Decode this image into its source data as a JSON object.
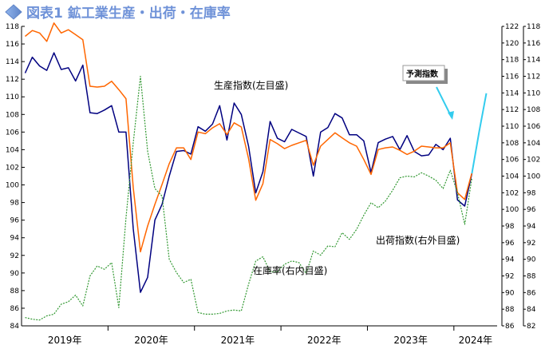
{
  "chart_data": {
    "type": "line",
    "title": "図表1 鉱工業生産・出荷・在庫率",
    "title_color": "#7f9fd8",
    "x_tick_labels": [
      "2019年",
      "2020年",
      "2021年",
      "2022年",
      "2023年",
      "2024年"
    ],
    "x_tick_years": [
      2019,
      2020,
      2021,
      2022,
      2023,
      2024
    ],
    "x_start": "2019-01",
    "x_end": "2024-06",
    "left_axis": {
      "min": 84,
      "max": 118,
      "step": 2
    },
    "right_axis_inventory": {
      "min": 86,
      "max": 122,
      "step": 2
    },
    "right_axis_shipment": {
      "min": 82,
      "max": 118,
      "step": 2
    },
    "grid": false,
    "series": [
      {
        "name": "生産指数(左目盛)",
        "axis": "left",
        "color": "#000080",
        "dashed": false,
        "x": [
          "2019-01",
          "2019-02",
          "2019-03",
          "2019-04",
          "2019-05",
          "2019-06",
          "2019-07",
          "2019-08",
          "2019-09",
          "2019-10",
          "2019-11",
          "2019-12",
          "2020-01",
          "2020-02",
          "2020-03",
          "2020-04",
          "2020-05",
          "2020-06",
          "2020-07",
          "2020-08",
          "2020-09",
          "2020-10",
          "2020-11",
          "2020-12",
          "2021-01",
          "2021-02",
          "2021-03",
          "2021-04",
          "2021-05",
          "2021-06",
          "2021-07",
          "2021-08",
          "2021-09",
          "2021-10",
          "2021-11",
          "2021-12",
          "2022-01",
          "2022-02",
          "2022-03",
          "2022-04",
          "2022-05",
          "2022-06",
          "2022-07",
          "2022-08",
          "2022-09",
          "2022-10",
          "2022-11",
          "2022-12",
          "2023-01",
          "2023-02",
          "2023-03",
          "2023-04",
          "2023-05",
          "2023-06",
          "2023-07",
          "2023-08",
          "2023-09",
          "2023-10",
          "2023-11",
          "2023-12",
          "2024-01",
          "2024-02",
          "2024-03"
        ],
        "values": [
          112.7,
          114.5,
          113.5,
          113.0,
          115.0,
          113.1,
          113.3,
          111.8,
          113.6,
          108.2,
          108.1,
          108.5,
          109.0,
          106.0,
          106.0,
          95.0,
          87.8,
          89.5,
          96.0,
          97.8,
          101.0,
          103.8,
          103.9,
          103.5,
          106.6,
          106.1,
          106.9,
          109.0,
          105.1,
          109.3,
          108.0,
          104.4,
          99.1,
          101.5,
          107.2,
          105.3,
          104.9,
          106.3,
          105.9,
          105.5,
          101.0,
          106.0,
          106.5,
          108.1,
          107.6,
          105.7,
          105.7,
          105.0,
          101.4,
          104.8,
          105.2,
          105.5,
          104.0,
          105.6,
          103.8,
          103.3,
          103.4,
          104.6,
          104.0,
          105.3,
          98.3,
          97.6,
          101.3
        ]
      },
      {
        "name": "出荷指数(右外目盛)",
        "axis": "right_shipment",
        "color": "#ff6600",
        "dashed": false,
        "x": [
          "2019-01",
          "2019-02",
          "2019-03",
          "2019-04",
          "2019-05",
          "2019-06",
          "2019-07",
          "2019-08",
          "2019-09",
          "2019-10",
          "2019-11",
          "2019-12",
          "2020-01",
          "2020-02",
          "2020-03",
          "2020-04",
          "2020-05",
          "2020-06",
          "2020-07",
          "2020-08",
          "2020-09",
          "2020-10",
          "2020-11",
          "2020-12",
          "2021-01",
          "2021-02",
          "2021-03",
          "2021-04",
          "2021-05",
          "2021-06",
          "2021-07",
          "2021-08",
          "2021-09",
          "2021-10",
          "2021-11",
          "2021-12",
          "2022-01",
          "2022-02",
          "2022-03",
          "2022-04",
          "2022-05",
          "2022-06",
          "2022-07",
          "2022-08",
          "2022-09",
          "2022-10",
          "2022-11",
          "2022-12",
          "2023-01",
          "2023-02",
          "2023-03",
          "2023-04",
          "2023-05",
          "2023-06",
          "2023-07",
          "2023-08",
          "2023-09",
          "2023-10",
          "2023-11",
          "2023-12",
          "2024-01",
          "2024-02",
          "2024-03"
        ],
        "values": [
          116.8,
          117.5,
          117.2,
          116.2,
          118.4,
          117.2,
          117.6,
          117.0,
          116.4,
          110.8,
          110.7,
          110.8,
          111.4,
          110.4,
          109.3,
          98.6,
          90.9,
          94.0,
          96.6,
          99.0,
          101.5,
          103.4,
          103.4,
          102.0,
          105.3,
          105.1,
          105.8,
          106.3,
          105.0,
          106.4,
          105.9,
          102.1,
          97.1,
          99.1,
          104.4,
          103.9,
          103.3,
          103.7,
          104.0,
          104.3,
          101.3,
          103.6,
          104.4,
          105.2,
          104.6,
          104.0,
          103.6,
          102.0,
          100.2,
          103.2,
          103.4,
          103.5,
          103.1,
          102.6,
          103.0,
          103.6,
          103.5,
          103.4,
          103.4,
          104.0,
          98.0,
          97.2,
          100.4
        ]
      },
      {
        "name": "在庫率(右内目盛)",
        "axis": "right_inventory",
        "color": "#339933",
        "dashed": true,
        "x": [
          "2019-01",
          "2019-02",
          "2019-03",
          "2019-04",
          "2019-05",
          "2019-06",
          "2019-07",
          "2019-08",
          "2019-09",
          "2019-10",
          "2019-11",
          "2019-12",
          "2020-01",
          "2020-02",
          "2020-03",
          "2020-04",
          "2020-05",
          "2020-06",
          "2020-07",
          "2020-08",
          "2020-09",
          "2020-10",
          "2020-11",
          "2020-12",
          "2021-01",
          "2021-02",
          "2021-03",
          "2021-04",
          "2021-05",
          "2021-06",
          "2021-07",
          "2021-08",
          "2021-09",
          "2021-10",
          "2021-11",
          "2021-12",
          "2022-01",
          "2022-02",
          "2022-03",
          "2022-04",
          "2022-05",
          "2022-06",
          "2022-07",
          "2022-08",
          "2022-09",
          "2022-10",
          "2022-11",
          "2022-12",
          "2023-01",
          "2023-02",
          "2023-03",
          "2023-04",
          "2023-05",
          "2023-06",
          "2023-07",
          "2023-08",
          "2023-09",
          "2023-10",
          "2023-11",
          "2023-12",
          "2024-01",
          "2024-02",
          "2024-03"
        ],
        "values": [
          87.0,
          86.8,
          86.7,
          87.2,
          87.4,
          88.6,
          88.9,
          89.7,
          88.4,
          92.0,
          93.2,
          92.8,
          93.6,
          88.2,
          99.0,
          108.0,
          116.0,
          107.0,
          102.5,
          101.6,
          94.0,
          92.4,
          91.2,
          91.6,
          87.6,
          87.4,
          87.4,
          87.5,
          87.8,
          87.9,
          87.8,
          91.0,
          93.8,
          94.3,
          92.5,
          92.5,
          93.4,
          93.8,
          93.6,
          92.3,
          95.0,
          94.5,
          95.6,
          95.5,
          97.2,
          96.4,
          97.6,
          99.3,
          100.8,
          100.2,
          101.0,
          102.3,
          103.8,
          104.0,
          103.9,
          104.4,
          104.0,
          103.5,
          102.5,
          104.7,
          102.0,
          98.2,
          103.8
        ]
      },
      {
        "name": "予測指数",
        "axis": "left",
        "color": "#33ccee",
        "dashed": false,
        "x": [
          "2024-03",
          "2024-04",
          "2024-05"
        ],
        "values": [
          101.3,
          106.0,
          110.4
        ]
      }
    ],
    "annotations": {
      "production": "生産指数(左目盛)",
      "shipment": "出荷指数(右外目盛)",
      "inventory": "在庫率(右内目盛)",
      "forecast": "予測指数"
    }
  }
}
